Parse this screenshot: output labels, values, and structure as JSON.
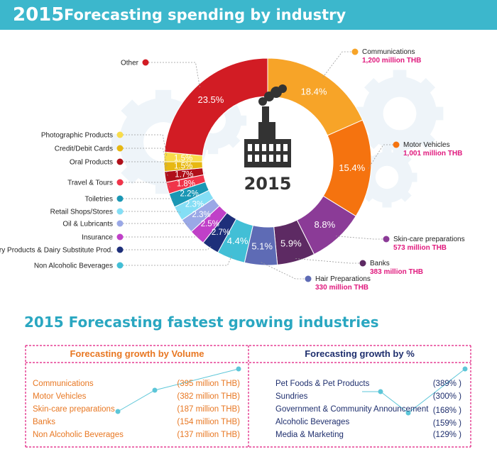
{
  "header": {
    "year": "2015",
    "title": "Forecasting spending by industry"
  },
  "colors": {
    "accent": "#3cb7cc",
    "pink": "#e0197d",
    "orange": "#e87722",
    "navy": "#1f2f6e"
  },
  "chart_data": {
    "type": "pie",
    "center_label": "2015",
    "slices": [
      {
        "label": "Communications",
        "pct": "18.4%",
        "value": 18.4,
        "color": "#f7a428",
        "amount": "1,200 million THB"
      },
      {
        "label": "Motor Vehicles",
        "pct": "15.4%",
        "value": 15.4,
        "color": "#f5730f",
        "amount": "1,001 million THB"
      },
      {
        "label": "Skin-care preparations",
        "pct": "8.8%",
        "value": 8.8,
        "color": "#8b3b97",
        "amount": "573 million THB"
      },
      {
        "label": "Banks",
        "pct": "5.9%",
        "value": 5.9,
        "color": "#5d2a63",
        "amount": "383 million THB"
      },
      {
        "label": "Hair Preparations",
        "pct": "5.1%",
        "value": 5.1,
        "color": "#5e6bb5",
        "amount": "330 million THB"
      },
      {
        "label": "Non Alcoholic Beverages",
        "pct": "4.4%",
        "value": 4.4,
        "color": "#42bfd6",
        "amount": ""
      },
      {
        "label": "Dairy Products & Dairy Substitute Prod.",
        "pct": "2.7%",
        "value": 2.7,
        "color": "#1e2f7a",
        "amount": ""
      },
      {
        "label": "Insurance",
        "pct": "2.5%",
        "value": 2.5,
        "color": "#c040c8",
        "amount": ""
      },
      {
        "label": "Oil & Lubricants",
        "pct": "2.3%",
        "value": 2.3,
        "color": "#9aa8e6",
        "amount": ""
      },
      {
        "label": "Retail Shops/Stores",
        "pct": "2.3%",
        "value": 2.3,
        "color": "#84def5",
        "amount": ""
      },
      {
        "label": "Toiletries",
        "pct": "2.2%",
        "value": 2.2,
        "color": "#1a97b4",
        "amount": ""
      },
      {
        "label": "Travel & Tours",
        "pct": "1.8%",
        "value": 1.8,
        "color": "#f0344a",
        "amount": ""
      },
      {
        "label": "Oral Products",
        "pct": "1.7%",
        "value": 1.7,
        "color": "#b0101a",
        "amount": ""
      },
      {
        "label": "Credit/Debit Cards",
        "pct": "1.5%",
        "value": 1.5,
        "color": "#e7b812",
        "amount": ""
      },
      {
        "label": "Photographic Products",
        "pct": "1.5%",
        "value": 1.5,
        "color": "#f8dc4a",
        "amount": ""
      },
      {
        "label": "Other",
        "pct": "23.5%",
        "value": 23.5,
        "color": "#d21c24",
        "amount": ""
      }
    ]
  },
  "growth": {
    "title": "2015 Forecasting fastest growing industries",
    "volume": {
      "heading": "Forecasting growth by Volume",
      "rows": [
        {
          "name": "Communications",
          "value": "(395 million THB)"
        },
        {
          "name": "Motor Vehicles",
          "value": "(382 million THB)"
        },
        {
          "name": "Skin-care preparations",
          "value": "(187 million THB)"
        },
        {
          "name": "Banks",
          "value": "(154 million THB)"
        },
        {
          "name": "Non Alcoholic Beverages",
          "value": "(137 million THB)"
        }
      ]
    },
    "percent": {
      "heading": "Forecasting growth by %",
      "rows": [
        {
          "name": "Pet Foods & Pet Products",
          "value": "(389% )"
        },
        {
          "name": "Sundries",
          "value": "(300% )"
        },
        {
          "name": "Government & Community Announcement",
          "value": "(168% )"
        },
        {
          "name": "Alcoholic Beverages",
          "value": "(159% )"
        },
        {
          "name": "Media & Marketing",
          "value": "(129% )"
        }
      ]
    }
  }
}
